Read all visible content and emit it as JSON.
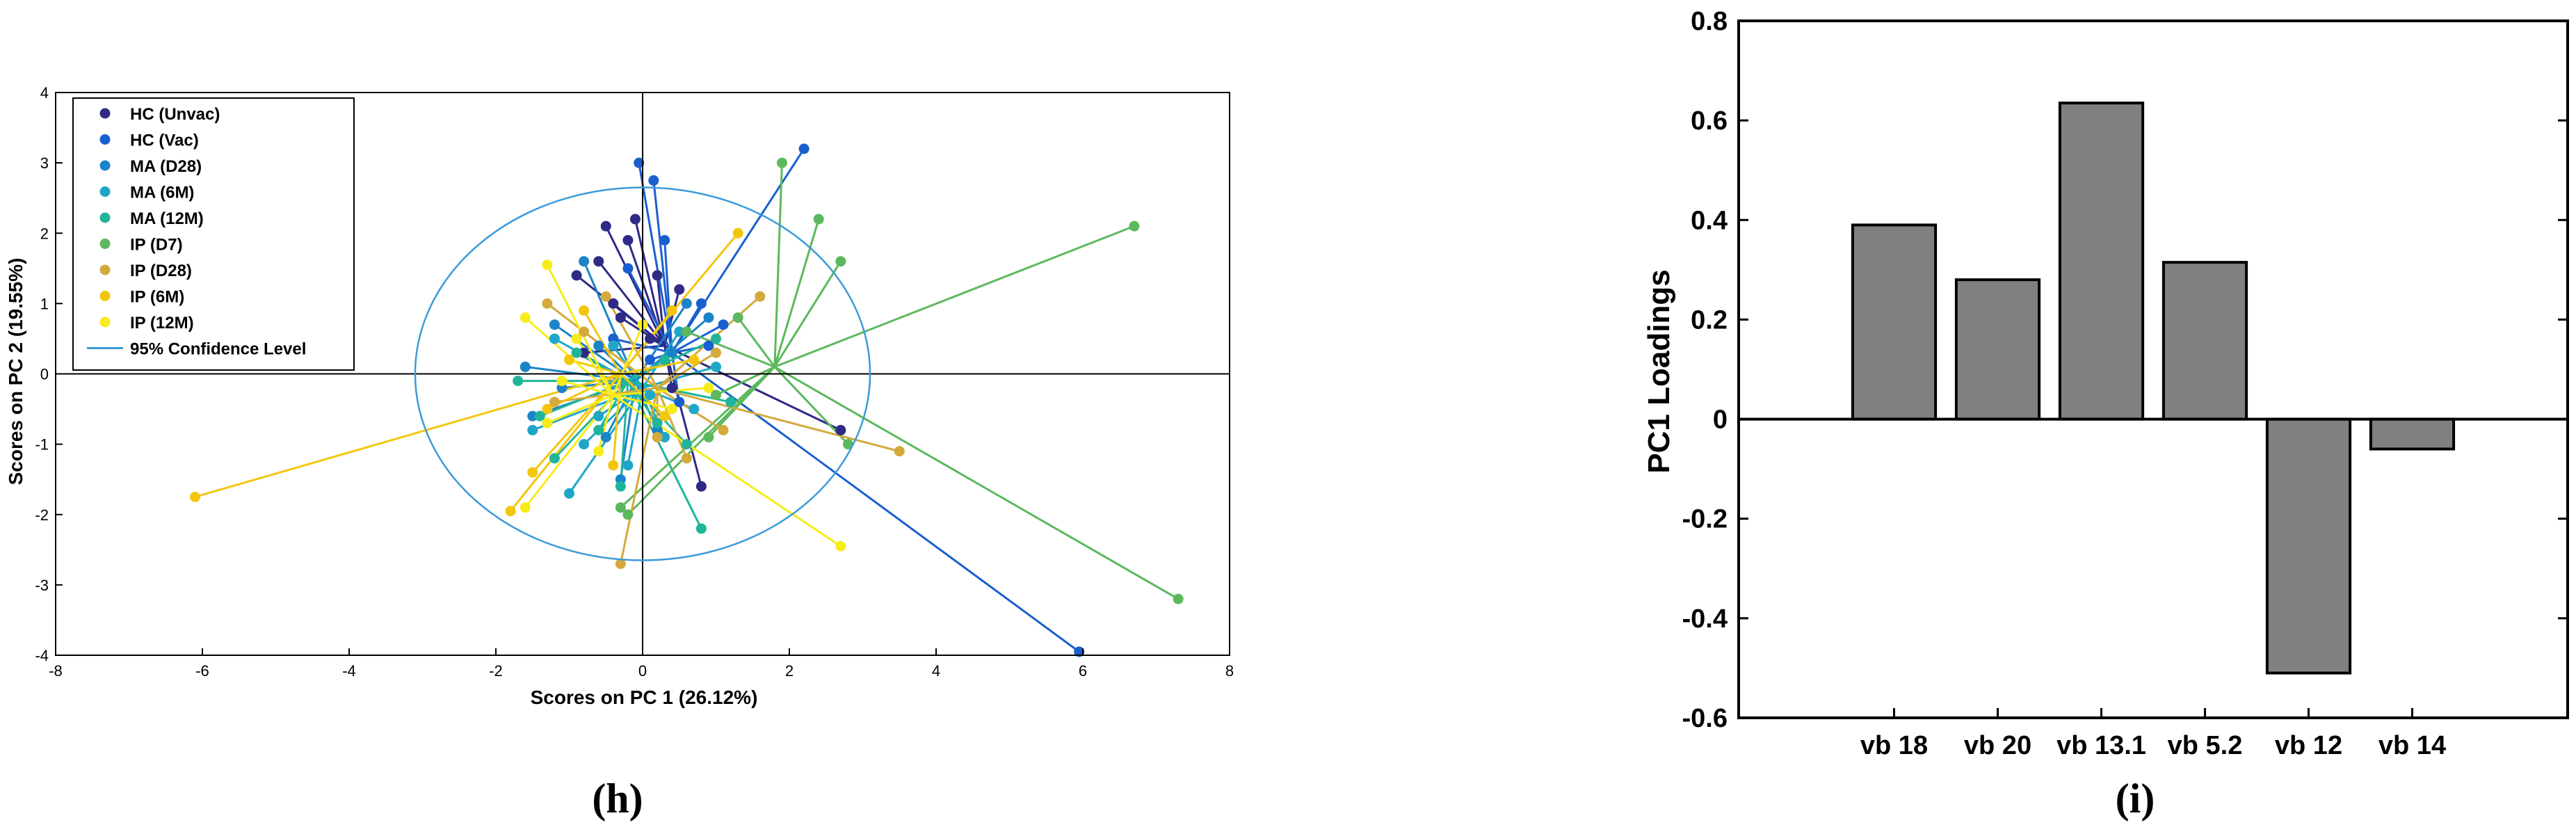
{
  "panels": {
    "h_label": "(h)",
    "i_label": "(i)"
  },
  "chart_data": [
    {
      "type": "scatter",
      "xlabel": "Scores on PC 1 (26.12%)",
      "ylabel": "Scores on PC 2 (19.55%)",
      "xlim": [
        -8,
        8
      ],
      "ylim": [
        -4,
        4
      ],
      "xticks": [
        -8,
        -6,
        -4,
        -2,
        0,
        2,
        4,
        6,
        8
      ],
      "yticks": [
        -4,
        -3,
        -2,
        -1,
        0,
        1,
        2,
        3,
        4
      ],
      "grid": false,
      "legend_position": "top-left",
      "confidence_label": "95% Confidence Level",
      "confidence_ellipse": {
        "center": [
          0,
          0
        ],
        "rx": 3.1,
        "ry": 2.65
      },
      "confidence_color": "#3a9bd9",
      "series": [
        {
          "name": "HC (Unvac)",
          "color": "#2e2a86",
          "centroid": [
            0.3,
            0.4
          ],
          "points": [
            [
              -0.2,
              1.9
            ],
            [
              -0.6,
              1.6
            ],
            [
              -0.5,
              2.1
            ],
            [
              -0.4,
              1.0
            ],
            [
              0.1,
              0.5
            ],
            [
              -0.8,
              0.3
            ],
            [
              0.5,
              1.2
            ],
            [
              0.8,
              -1.6
            ],
            [
              2.7,
              -0.8
            ],
            [
              -0.9,
              1.4
            ],
            [
              -0.1,
              2.2
            ],
            [
              0.4,
              -0.2
            ],
            [
              -0.3,
              0.8
            ],
            [
              0.2,
              1.4
            ]
          ]
        },
        {
          "name": "HC (Vac)",
          "color": "#1a5fd0",
          "centroid": [
            0.4,
            0.3
          ],
          "points": [
            [
              -0.05,
              3.0
            ],
            [
              0.15,
              2.75
            ],
            [
              2.2,
              3.2
            ],
            [
              5.95,
              -3.95
            ],
            [
              -0.2,
              1.5
            ],
            [
              0.3,
              1.9
            ],
            [
              0.8,
              1.0
            ],
            [
              0.1,
              0.2
            ],
            [
              -0.4,
              0.5
            ],
            [
              0.9,
              0.4
            ],
            [
              0.5,
              -0.4
            ],
            [
              1.1,
              0.7
            ]
          ]
        },
        {
          "name": "MA (D28)",
          "color": "#1b84c8",
          "centroid": [
            -0.1,
            -0.1
          ],
          "points": [
            [
              -0.8,
              1.6
            ],
            [
              -1.2,
              0.7
            ],
            [
              -1.5,
              -0.6
            ],
            [
              -0.5,
              -0.9
            ],
            [
              0.6,
              1.0
            ],
            [
              -0.3,
              -1.5
            ],
            [
              0.4,
              0.3
            ],
            [
              -1.1,
              -0.2
            ],
            [
              -0.6,
              0.4
            ],
            [
              0.2,
              -0.8
            ],
            [
              -1.6,
              0.1
            ],
            [
              0.9,
              0.8
            ]
          ]
        },
        {
          "name": "MA (6M)",
          "color": "#1ea6c8",
          "centroid": [
            0.0,
            -0.2
          ],
          "points": [
            [
              -1.0,
              -1.7
            ],
            [
              -0.4,
              0.4
            ],
            [
              0.3,
              -0.9
            ],
            [
              -1.5,
              -0.8
            ],
            [
              0.5,
              0.6
            ],
            [
              -0.8,
              -1.0
            ],
            [
              1.0,
              0.1
            ],
            [
              -0.2,
              -1.3
            ],
            [
              -1.2,
              0.5
            ],
            [
              0.1,
              -0.3
            ],
            [
              -0.6,
              -0.6
            ],
            [
              0.7,
              -0.5
            ]
          ]
        },
        {
          "name": "MA (12M)",
          "color": "#20b59a",
          "centroid": [
            -0.2,
            -0.1
          ],
          "points": [
            [
              -1.7,
              -0.1
            ],
            [
              0.8,
              -2.2
            ],
            [
              -0.6,
              -0.8
            ],
            [
              1.0,
              0.5
            ],
            [
              -1.2,
              -1.2
            ],
            [
              0.3,
              0.2
            ],
            [
              -0.9,
              0.3
            ],
            [
              0.6,
              -1.0
            ],
            [
              -0.3,
              -1.6
            ],
            [
              1.2,
              -0.4
            ],
            [
              -1.4,
              -0.6
            ],
            [
              0.2,
              -0.7
            ]
          ]
        },
        {
          "name": "IP (D7)",
          "color": "#5cb85c",
          "centroid": [
            1.8,
            0.1
          ],
          "points": [
            [
              1.9,
              3.0
            ],
            [
              2.4,
              2.2
            ],
            [
              2.7,
              1.6
            ],
            [
              6.7,
              2.1
            ],
            [
              7.3,
              -3.2
            ],
            [
              2.8,
              -1.0
            ],
            [
              -0.2,
              -2.0
            ],
            [
              -0.3,
              -1.9
            ],
            [
              1.0,
              -0.3
            ],
            [
              0.6,
              0.6
            ],
            [
              1.3,
              0.8
            ],
            [
              0.9,
              -0.9
            ]
          ]
        },
        {
          "name": "IP (D28)",
          "color": "#d4aa3c",
          "centroid": [
            0.2,
            -0.2
          ],
          "points": [
            [
              -1.3,
              1.0
            ],
            [
              -0.3,
              -2.7
            ],
            [
              3.5,
              -1.1
            ],
            [
              1.6,
              1.1
            ],
            [
              0.2,
              -0.9
            ],
            [
              -0.8,
              0.6
            ],
            [
              1.0,
              0.3
            ],
            [
              -1.2,
              -0.4
            ],
            [
              0.6,
              -1.2
            ],
            [
              -0.5,
              1.1
            ],
            [
              1.1,
              -0.8
            ]
          ]
        },
        {
          "name": "IP (6M)",
          "color": "#f3c60e",
          "centroid": [
            -0.3,
            0.0
          ],
          "points": [
            [
              -6.1,
              -1.75
            ],
            [
              -1.8,
              -1.95
            ],
            [
              -1.5,
              -1.4
            ],
            [
              -0.8,
              0.9
            ],
            [
              1.3,
              2.0
            ],
            [
              -1.3,
              -0.5
            ],
            [
              0.4,
              0.9
            ],
            [
              -1.0,
              0.2
            ],
            [
              0.3,
              -0.6
            ],
            [
              -0.4,
              -1.3
            ],
            [
              0.7,
              0.2
            ]
          ]
        },
        {
          "name": "IP (12M)",
          "color": "#f7ec1a",
          "centroid": [
            -0.4,
            -0.3
          ],
          "points": [
            [
              -1.3,
              1.55
            ],
            [
              -1.6,
              0.8
            ],
            [
              -1.6,
              -1.9
            ],
            [
              2.7,
              -2.45
            ],
            [
              -1.3,
              -0.7
            ],
            [
              -0.9,
              0.5
            ],
            [
              0.4,
              -0.5
            ],
            [
              -0.6,
              -1.1
            ],
            [
              0.9,
              -0.2
            ],
            [
              -1.1,
              -0.1
            ],
            [
              0.0,
              0.7
            ]
          ]
        }
      ]
    },
    {
      "type": "bar",
      "ylabel": "PC1 Loadings",
      "categories": [
        "vb 18",
        "vb 20",
        "vb 13.1",
        "vb 5.2",
        "vb 12",
        "vb 14"
      ],
      "values": [
        0.39,
        0.28,
        0.635,
        0.315,
        -0.51,
        -0.06
      ],
      "ylim": [
        -0.6,
        0.8
      ],
      "yticks": [
        -0.6,
        -0.4,
        -0.2,
        0,
        0.2,
        0.4,
        0.6,
        0.8
      ],
      "bar_color": "#808080",
      "grid": false
    }
  ]
}
